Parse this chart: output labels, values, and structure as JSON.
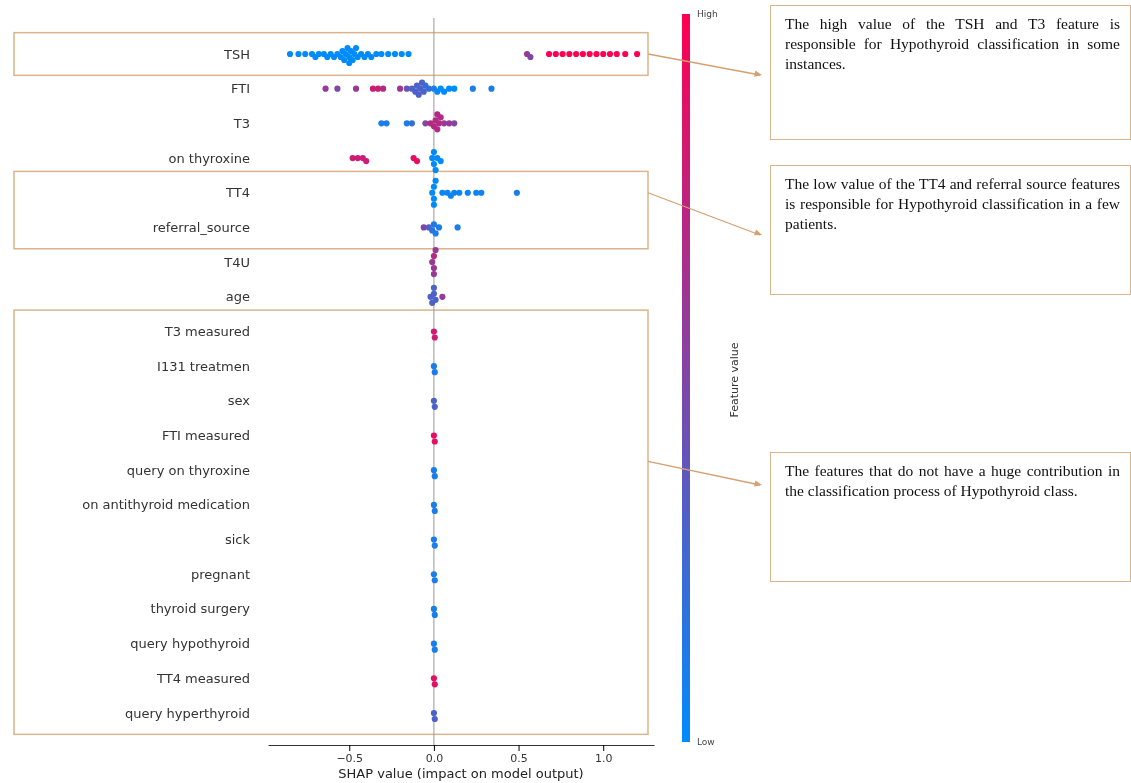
{
  "chart_data": {
    "type": "scatter",
    "orientation": "horizontal",
    "marker": "circle",
    "xlabel": "SHAP value (impact on model output)",
    "clabel": "Feature value",
    "categories": [
      "TSH",
      "FTI",
      "T3",
      "on thyroxine",
      "TT4",
      "referral_source",
      "T4U",
      "age",
      "T3 measured",
      "I131 treatmen",
      "sex",
      "FTI measured",
      "query on thyroxine",
      "on antithyroid medication",
      "sick",
      "pregnant",
      "thyroid surgery",
      "query hypothyroid",
      "TT4 measured",
      "query hyperthyroid"
    ],
    "xlim": [
      -0.98,
      1.3
    ],
    "xticks": [
      {
        "value": -0.5,
        "label": "−0.5"
      },
      {
        "value": 0,
        "label": "0.0"
      },
      {
        "value": 0.5,
        "label": "0.5"
      },
      {
        "value": 1,
        "label": "1.0"
      }
    ],
    "clim": [
      0,
      1
    ],
    "cticks": [
      {
        "value": 0,
        "label": "Low"
      },
      {
        "value": 1,
        "label": "High"
      }
    ],
    "ref_lines": [
      {
        "axis": "x",
        "value": 0,
        "color": "#999999"
      }
    ],
    "series": [
      {
        "x": [
          "TSH",
          "TSH",
          "TSH",
          "TSH",
          "TSH",
          "TSH",
          "TSH",
          "TSH",
          "TSH",
          "TSH",
          "TSH",
          "TSH",
          "TSH",
          "TSH",
          "TSH",
          "TSH",
          "TSH",
          "TSH",
          "TSH",
          "TSH",
          "TSH",
          "TSH",
          "TSH",
          "TSH",
          "TSH",
          "TSH",
          "TSH",
          "TSH",
          "TSH",
          "TSH",
          "TSH",
          "TSH",
          "TSH",
          "TSH",
          "TSH",
          "TSH",
          "TSH",
          "TSH",
          "TSH",
          "TSH",
          "TSH",
          "TSH",
          "TSH",
          "TSH",
          "TSH",
          "TSH",
          "TSH",
          "TSH"
        ],
        "values": [
          -0.85,
          -0.8,
          -0.76,
          -0.72,
          -0.7,
          -0.68,
          -0.65,
          -0.63,
          -0.61,
          -0.59,
          -0.57,
          -0.55,
          -0.54,
          -0.53,
          -0.52,
          -0.51,
          -0.5,
          -0.5,
          -0.49,
          -0.48,
          -0.47,
          -0.46,
          -0.45,
          -0.43,
          -0.41,
          -0.39,
          -0.37,
          -0.34,
          -0.31,
          -0.27,
          -0.23,
          -0.19,
          -0.15,
          0.55,
          0.57,
          0.68,
          0.72,
          0.76,
          0.8,
          0.84,
          0.88,
          0.92,
          0.96,
          1.0,
          1.04,
          1.08,
          1.13,
          1.2
        ],
        "colors": [
          "#008bfb",
          "#008bfb",
          "#008bfb",
          "#008bfb",
          "#008bfb",
          "#008bfb",
          "#008bfb",
          "#008bfb",
          "#008bfb",
          "#008bfb",
          "#008bfb",
          "#008bfb",
          "#008bfb",
          "#008bfb",
          "#008bfb",
          "#008bfb",
          "#008bfb",
          "#008bfb",
          "#008bfb",
          "#008bfb",
          "#008bfb",
          "#008bfb",
          "#008bfb",
          "#008bfb",
          "#008bfb",
          "#008bfb",
          "#008bfb",
          "#008bfb",
          "#008bfb",
          "#008bfb",
          "#008bfb",
          "#008bfb",
          "#008bfb",
          "#993895",
          "#8046a6",
          "#ff0051",
          "#ff0051",
          "#ff0051",
          "#ff0051",
          "#ff0051",
          "#ff0051",
          "#ff0051",
          "#ff0051",
          "#ff0051",
          "#ff0051",
          "#ff0051",
          "#ff0051",
          "#ff0051"
        ]
      },
      {
        "x": [
          "FTI",
          "FTI",
          "FTI",
          "FTI",
          "FTI",
          "FTI",
          "FTI",
          "FTI",
          "FTI",
          "FTI",
          "FTI",
          "FTI",
          "FTI",
          "FTI",
          "FTI",
          "FTI",
          "FTI",
          "FTI",
          "FTI",
          "FTI",
          "FTI",
          "FTI",
          "FTI",
          "FTI",
          "FTI"
        ],
        "values": [
          -0.64,
          -0.57,
          -0.46,
          -0.36,
          -0.33,
          -0.3,
          -0.2,
          -0.16,
          -0.13,
          -0.11,
          -0.1,
          -0.09,
          -0.08,
          -0.07,
          -0.06,
          -0.05,
          -0.03,
          0,
          0.02,
          0.04,
          0.06,
          0.09,
          0.12,
          0.23,
          0.34
        ],
        "colors": [
          "#993895",
          "#8046a6",
          "#993895",
          "#cc1c73",
          "#cc1c73",
          "#b32a84",
          "#993895",
          "#6653b7",
          "#4d61c8",
          "#4d61c8",
          "#4d61c8",
          "#4d61c8",
          "#4d61c8",
          "#4d61c8",
          "#4d61c8",
          "#336fd9",
          "#336fd9",
          "#1a7dea",
          "#008bfb",
          "#008bfb",
          "#008bfb",
          "#008bfb",
          "#008bfb",
          "#1a7dea",
          "#1a7dea"
        ]
      },
      {
        "x": [
          "T3",
          "T3",
          "T3",
          "T3",
          "T3",
          "T3",
          "T3",
          "T3",
          "T3",
          "T3",
          "T3",
          "T3",
          "T3",
          "T3",
          "T3"
        ],
        "values": [
          -0.31,
          -0.28,
          -0.16,
          -0.13,
          -0.05,
          -0.02,
          0,
          0.01,
          0.02,
          0.02,
          0.03,
          0.04,
          0.06,
          0.09,
          0.12
        ],
        "colors": [
          "#1a7dea",
          "#1a7dea",
          "#1a7dea",
          "#336fd9",
          "#8046a6",
          "#b32a84",
          "#b32a84",
          "#b32a84",
          "#b32a84",
          "#b32a84",
          "#b32a84",
          "#b32a84",
          "#993895",
          "#993895",
          "#8046a6"
        ]
      },
      {
        "x": [
          "on thyroxine",
          "on thyroxine",
          "on thyroxine",
          "on thyroxine",
          "on thyroxine",
          "on thyroxine",
          "on thyroxine",
          "on thyroxine",
          "on thyroxine",
          "on thyroxine",
          "on thyroxine",
          "on thyroxine"
        ],
        "values": [
          -0.48,
          -0.45,
          -0.42,
          -0.4,
          -0.12,
          -0.1,
          -0.01,
          0,
          0,
          0.01,
          0.02,
          0.04
        ],
        "colors": [
          "#cc1c73",
          "#cc1c73",
          "#cc1c73",
          "#cc1c73",
          "#e60e62",
          "#e60e62",
          "#008bfb",
          "#008bfb",
          "#008bfb",
          "#008bfb",
          "#008bfb",
          "#008bfb"
        ]
      },
      {
        "x": [
          "TT4",
          "TT4",
          "TT4",
          "TT4",
          "TT4",
          "TT4",
          "TT4",
          "TT4",
          "TT4",
          "TT4",
          "TT4",
          "TT4",
          "TT4",
          "TT4"
        ],
        "values": [
          -0.01,
          0,
          0,
          0,
          0.01,
          0.05,
          0.08,
          0.1,
          0.12,
          0.15,
          0.2,
          0.25,
          0.28,
          0.49
        ],
        "colors": [
          "#008bfb",
          "#008bfb",
          "#008bfb",
          "#008bfb",
          "#008bfb",
          "#0d84f3",
          "#0d84f3",
          "#0d84f3",
          "#0d84f3",
          "#0d84f3",
          "#0d84f3",
          "#0d84f3",
          "#0d84f3",
          "#1a7dea"
        ]
      },
      {
        "x": [
          "referral_source",
          "referral_source",
          "referral_source",
          "referral_source",
          "referral_source",
          "referral_source",
          "referral_source"
        ],
        "values": [
          -0.06,
          -0.03,
          -0.01,
          0,
          0.01,
          0.03,
          0.14
        ],
        "colors": [
          "#8046a6",
          "#4d61c8",
          "#336fd9",
          "#1a7dea",
          "#1a7dea",
          "#1a7dea",
          "#1a7dea"
        ]
      },
      {
        "x": [
          "T4U",
          "T4U",
          "T4U",
          "T4U",
          "T4U"
        ],
        "values": [
          -0.01,
          0,
          0,
          0,
          0.01
        ],
        "colors": [
          "#993895",
          "#993895",
          "#b32a84",
          "#993895",
          "#993895"
        ]
      },
      {
        "x": [
          "age",
          "age",
          "age",
          "age",
          "age",
          "age"
        ],
        "values": [
          -0.02,
          -0.01,
          0,
          0,
          0.01,
          0.05
        ],
        "colors": [
          "#4d61c8",
          "#4d61c8",
          "#4d61c8",
          "#4d61c8",
          "#4d61c8",
          "#993895"
        ]
      },
      {
        "x": [
          "T3 measured",
          "T3 measured",
          "I131 treatmen",
          "I131 treatmen",
          "sex",
          "sex",
          "FTI measured",
          "FTI measured",
          "query on thyroxine",
          "query on thyroxine",
          "on antithyroid medication",
          "on antithyroid medication",
          "sick",
          "sick",
          "pregnant",
          "pregnant",
          "thyroid surgery",
          "thyroid surgery",
          "query hypothyroid",
          "query hypothyroid",
          "TT4 measured",
          "TT4 measured",
          "query hyperthyroid",
          "query hyperthyroid"
        ],
        "values": [
          0,
          0.005,
          0,
          0.005,
          0,
          0.005,
          0,
          0.005,
          0,
          0.005,
          0,
          0.005,
          0,
          0.005,
          0,
          0.005,
          0,
          0.005,
          0,
          0.005,
          0,
          0.005,
          0,
          0.005
        ],
        "colors": [
          "#cc1c73",
          "#cc1c73",
          "#1a7dea",
          "#1a7dea",
          "#4d61c8",
          "#4d61c8",
          "#e60e62",
          "#e60e62",
          "#1a7dea",
          "#1a7dea",
          "#1a7dea",
          "#1a7dea",
          "#1a7dea",
          "#1a7dea",
          "#1a7dea",
          "#1a7dea",
          "#1a7dea",
          "#1a7dea",
          "#1a7dea",
          "#1a7dea",
          "#e60e62",
          "#e60e62",
          "#4d61c8",
          "#4d61c8"
        ]
      }
    ],
    "annotations": [
      "The high value of the TSH and T3 feature is responsible for Hypothyroid classification in some instances.",
      "The low value of the TT4 and referral source features is responsible for Hypothyroid classification in a few patients.",
      "The features that do not have a huge contribution in the classification process of Hypothyroid class."
    ]
  }
}
